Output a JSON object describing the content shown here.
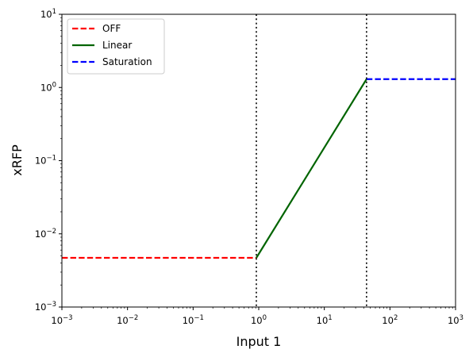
{
  "chart_data": {
    "type": "line",
    "title": "",
    "xlabel": "Input 1",
    "ylabel": "xRFP",
    "xscale": "log",
    "yscale": "log",
    "xlim": [
      0.001,
      1000
    ],
    "ylim": [
      0.001,
      10
    ],
    "grid": false,
    "legend_position": "upper-left",
    "x_ticks": [
      {
        "value": 0.001,
        "base": "10",
        "exp": "−3"
      },
      {
        "value": 0.01,
        "base": "10",
        "exp": "−2"
      },
      {
        "value": 0.1,
        "base": "10",
        "exp": "−1"
      },
      {
        "value": 1,
        "base": "10",
        "exp": "0"
      },
      {
        "value": 10,
        "base": "10",
        "exp": "1"
      },
      {
        "value": 100,
        "base": "10",
        "exp": "2"
      },
      {
        "value": 1000,
        "base": "10",
        "exp": "3"
      }
    ],
    "y_ticks": [
      {
        "value": 0.001,
        "base": "10",
        "exp": "−3"
      },
      {
        "value": 0.01,
        "base": "10",
        "exp": "−2"
      },
      {
        "value": 0.1,
        "base": "10",
        "exp": "−1"
      },
      {
        "value": 1,
        "base": "10",
        "exp": "0"
      },
      {
        "value": 10,
        "base": "10",
        "exp": "1"
      }
    ],
    "series": [
      {
        "name": "OFF",
        "color": "#ff0000",
        "style": "dashed",
        "points": [
          [
            0.001,
            0.0047
          ],
          [
            0.92,
            0.0047
          ]
        ]
      },
      {
        "name": "Linear",
        "color": "#006400",
        "style": "solid",
        "points": [
          [
            0.92,
            0.0047
          ],
          [
            44,
            1.3
          ]
        ]
      },
      {
        "name": "Saturation",
        "color": "#0000ff",
        "style": "dashed",
        "points": [
          [
            44,
            1.3
          ],
          [
            1000,
            1.3
          ]
        ]
      }
    ],
    "vertical_lines": [
      {
        "x": 0.92,
        "color": "#000000",
        "style": "dotted"
      },
      {
        "x": 44,
        "color": "#000000",
        "style": "dotted"
      }
    ]
  }
}
